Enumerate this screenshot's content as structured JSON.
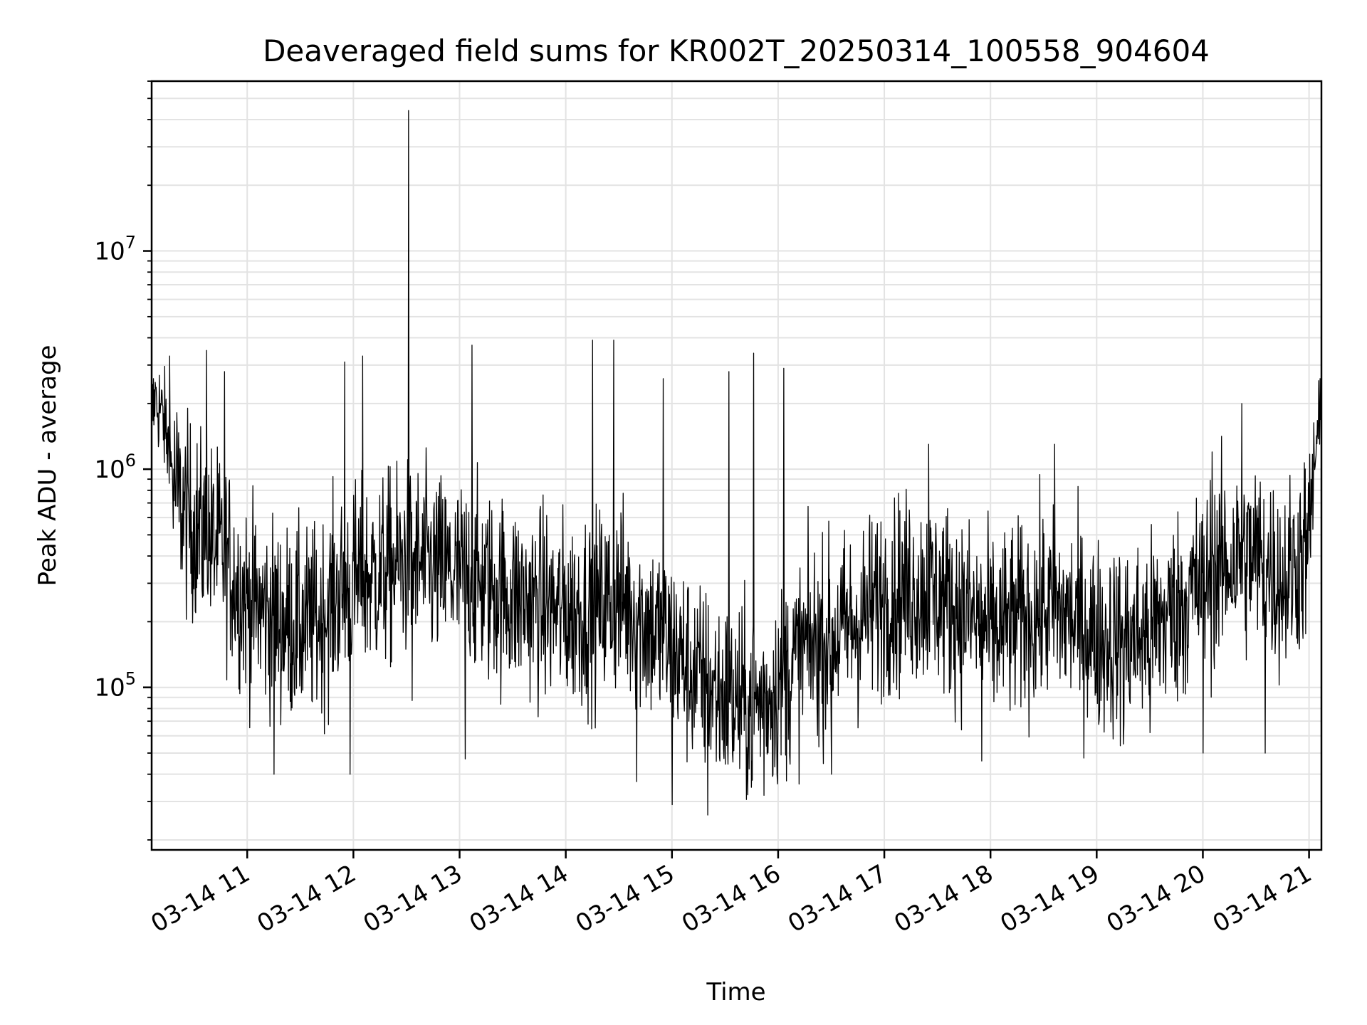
{
  "chart_data": {
    "type": "line",
    "title": "Deaveraged field sums for KR002T_20250314_100558_904604",
    "xlabel": "Time",
    "ylabel": "Peak ADU - average",
    "x_scale": "time",
    "y_scale": "log",
    "xlim": [
      "2025-03-14 10:06",
      "2025-03-14 21:07"
    ],
    "ylim": [
      18000,
      60000000
    ],
    "grid": true,
    "line_color": "#000000",
    "x_ticks": [
      {
        "time": "2025-03-14 11:00",
        "label": "03-14 11"
      },
      {
        "time": "2025-03-14 12:00",
        "label": "03-14 12"
      },
      {
        "time": "2025-03-14 13:00",
        "label": "03-14 13"
      },
      {
        "time": "2025-03-14 14:00",
        "label": "03-14 14"
      },
      {
        "time": "2025-03-14 15:00",
        "label": "03-14 15"
      },
      {
        "time": "2025-03-14 16:00",
        "label": "03-14 16"
      },
      {
        "time": "2025-03-14 17:00",
        "label": "03-14 17"
      },
      {
        "time": "2025-03-14 18:00",
        "label": "03-14 18"
      },
      {
        "time": "2025-03-14 19:00",
        "label": "03-14 19"
      },
      {
        "time": "2025-03-14 20:00",
        "label": "03-14 20"
      },
      {
        "time": "2025-03-14 21:00",
        "label": "03-14 21"
      }
    ],
    "y_ticks": [
      {
        "value": 100000,
        "base": "10",
        "exp": "5"
      },
      {
        "value": 1000000,
        "base": "10",
        "exp": "6"
      },
      {
        "value": 10000000,
        "base": "10",
        "exp": "7"
      }
    ],
    "series": [
      {
        "points": [
          [
            "2025-03-14 10:06",
            1800000
          ],
          [
            "2025-03-14 10:10",
            2000000
          ],
          [
            "2025-03-14 10:14",
            1500000
          ],
          [
            "2025-03-14 10:18",
            900000
          ],
          [
            "2025-03-14 10:22",
            700000
          ],
          [
            "2025-03-14 10:26",
            600000
          ],
          [
            "2025-03-14 10:30",
            550000
          ],
          [
            "2025-03-14 10:36",
            500000
          ],
          [
            "2025-03-14 10:42",
            450000
          ],
          [
            "2025-03-14 10:48",
            400000
          ],
          [
            "2025-03-14 10:54",
            300000
          ],
          [
            "2025-03-14 11:00",
            250000
          ],
          [
            "2025-03-14 11:10",
            220000
          ],
          [
            "2025-03-14 11:20",
            200000
          ],
          [
            "2025-03-14 11:30",
            190000
          ],
          [
            "2025-03-14 11:40",
            200000
          ],
          [
            "2025-03-14 11:50",
            260000
          ],
          [
            "2025-03-14 12:00",
            300000
          ],
          [
            "2025-03-14 12:15",
            330000
          ],
          [
            "2025-03-14 12:30",
            380000
          ],
          [
            "2025-03-14 12:45",
            350000
          ],
          [
            "2025-03-14 13:00",
            320000
          ],
          [
            "2025-03-14 13:15",
            290000
          ],
          [
            "2025-03-14 13:30",
            260000
          ],
          [
            "2025-03-14 13:45",
            240000
          ],
          [
            "2025-03-14 14:00",
            220000
          ],
          [
            "2025-03-14 14:15",
            230000
          ],
          [
            "2025-03-14 14:30",
            260000
          ],
          [
            "2025-03-14 14:45",
            200000
          ],
          [
            "2025-03-14 15:00",
            150000
          ],
          [
            "2025-03-14 15:15",
            110000
          ],
          [
            "2025-03-14 15:30",
            90000
          ],
          [
            "2025-03-14 15:45",
            80000
          ],
          [
            "2025-03-14 16:00",
            100000
          ],
          [
            "2025-03-14 16:15",
            150000
          ],
          [
            "2025-03-14 16:30",
            170000
          ],
          [
            "2025-03-14 16:45",
            200000
          ],
          [
            "2025-03-14 17:00",
            260000
          ],
          [
            "2025-03-14 17:15",
            280000
          ],
          [
            "2025-03-14 17:30",
            270000
          ],
          [
            "2025-03-14 17:45",
            220000
          ],
          [
            "2025-03-14 18:00",
            180000
          ],
          [
            "2025-03-14 18:15",
            200000
          ],
          [
            "2025-03-14 18:30",
            230000
          ],
          [
            "2025-03-14 18:45",
            210000
          ],
          [
            "2025-03-14 19:00",
            170000
          ],
          [
            "2025-03-14 19:15",
            160000
          ],
          [
            "2025-03-14 19:30",
            180000
          ],
          [
            "2025-03-14 19:45",
            230000
          ],
          [
            "2025-03-14 20:00",
            300000
          ],
          [
            "2025-03-14 20:15",
            380000
          ],
          [
            "2025-03-14 20:30",
            400000
          ],
          [
            "2025-03-14 20:45",
            300000
          ],
          [
            "2025-03-14 21:00",
            450000
          ],
          [
            "2025-03-14 21:03",
            1100000
          ],
          [
            "2025-03-14 21:07",
            1600000
          ]
        ],
        "spikes": [
          [
            "2025-03-14 10:08",
            2500000
          ],
          [
            "2025-03-14 10:16",
            3300000
          ],
          [
            "2025-03-14 10:37",
            3500000
          ],
          [
            "2025-03-14 10:47",
            2800000
          ],
          [
            "2025-03-14 11:15",
            40000
          ],
          [
            "2025-03-14 11:55",
            3100000
          ],
          [
            "2025-03-14 11:58",
            40000
          ],
          [
            "2025-03-14 12:05",
            3300000
          ],
          [
            "2025-03-14 12:31",
            44000000
          ],
          [
            "2025-03-14 12:33",
            87000
          ],
          [
            "2025-03-14 13:07",
            3700000
          ],
          [
            "2025-03-14 13:03",
            47000
          ],
          [
            "2025-03-14 14:15",
            3900000
          ],
          [
            "2025-03-14 14:27",
            3900000
          ],
          [
            "2025-03-14 14:40",
            37000
          ],
          [
            "2025-03-14 14:55",
            2600000
          ],
          [
            "2025-03-14 15:00",
            29000
          ],
          [
            "2025-03-14 15:20",
            26000
          ],
          [
            "2025-03-14 15:32",
            2800000
          ],
          [
            "2025-03-14 15:46",
            3400000
          ],
          [
            "2025-03-14 15:52",
            32000
          ],
          [
            "2025-03-14 16:03",
            2900000
          ],
          [
            "2025-03-14 16:30",
            40000
          ],
          [
            "2025-03-14 17:25",
            1300000
          ],
          [
            "2025-03-14 17:55",
            46000
          ],
          [
            "2025-03-14 18:36",
            1300000
          ],
          [
            "2025-03-14 19:15",
            55000
          ],
          [
            "2025-03-14 19:30",
            62000
          ],
          [
            "2025-03-14 20:05",
            1200000
          ],
          [
            "2025-03-14 20:00",
            50000
          ],
          [
            "2025-03-14 20:22",
            2000000
          ],
          [
            "2025-03-14 20:35",
            50000
          ],
          [
            "2025-03-14 21:06",
            2600000
          ]
        ]
      }
    ]
  }
}
